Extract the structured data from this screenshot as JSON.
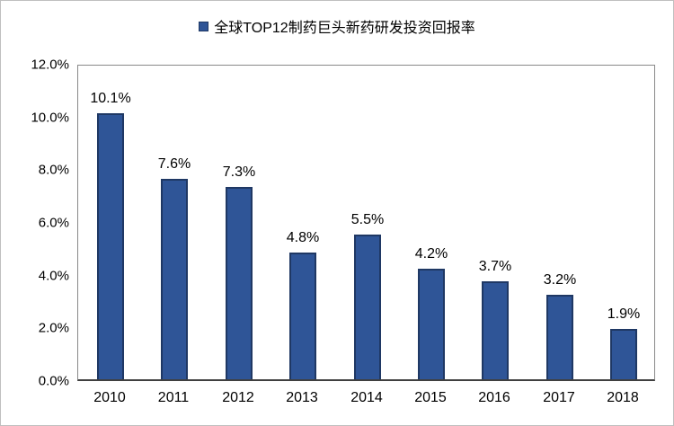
{
  "chart_data": {
    "type": "bar",
    "title": "全球TOP12制药巨头新药研发投资回报率",
    "categories": [
      "2010",
      "2011",
      "2012",
      "2013",
      "2014",
      "2015",
      "2016",
      "2017",
      "2018"
    ],
    "values": [
      10.1,
      7.6,
      7.3,
      4.8,
      5.5,
      4.2,
      3.7,
      3.2,
      1.9
    ],
    "value_labels": [
      "10.1%",
      "7.6%",
      "7.3%",
      "4.8%",
      "5.5%",
      "4.2%",
      "3.7%",
      "3.2%",
      "1.9%"
    ],
    "ylim": [
      0,
      12
    ],
    "ytick_labels": [
      "0.0%",
      "2.0%",
      "4.0%",
      "6.0%",
      "8.0%",
      "10.0%",
      "12.0%"
    ],
    "xlabel": "",
    "ylabel": "",
    "grid": false,
    "legend_position": "top",
    "colors": {
      "bar_fill": "#2F5597",
      "bar_border": "#1F3864",
      "plot_border": "#898989",
      "axis_line": "#404040",
      "text": "#000000"
    }
  }
}
